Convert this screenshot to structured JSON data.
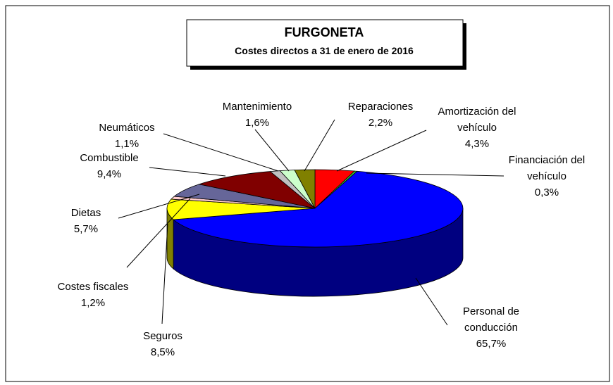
{
  "chart_data": {
    "type": "pie3d",
    "title": "FURGONETA",
    "subtitle": "Costes directos a 31 de enero de 2016",
    "categories": [
      "Amortización del vehículo",
      "Financiación del vehículo",
      "Personal de conducción",
      "Seguros",
      "Costes fiscales",
      "Dietas",
      "Combustible",
      "Neumáticos",
      "Mantenimiento",
      "Reparaciones"
    ],
    "values": [
      4.3,
      0.3,
      65.7,
      8.5,
      1.2,
      5.7,
      9.4,
      1.1,
      1.6,
      2.2
    ],
    "value_labels": [
      "4,3%",
      "0,3%",
      "65,7%",
      "8,5%",
      "1,2%",
      "5,7%",
      "9,4%",
      "1,1%",
      "1,6%",
      "2,2%"
    ],
    "colors": [
      "#ff0000",
      "#33cc33",
      "#0000ff",
      "#ffff00",
      "#ffcccc",
      "#666699",
      "#800000",
      "#c0c0c0",
      "#ccffcc",
      "#808000"
    ]
  }
}
